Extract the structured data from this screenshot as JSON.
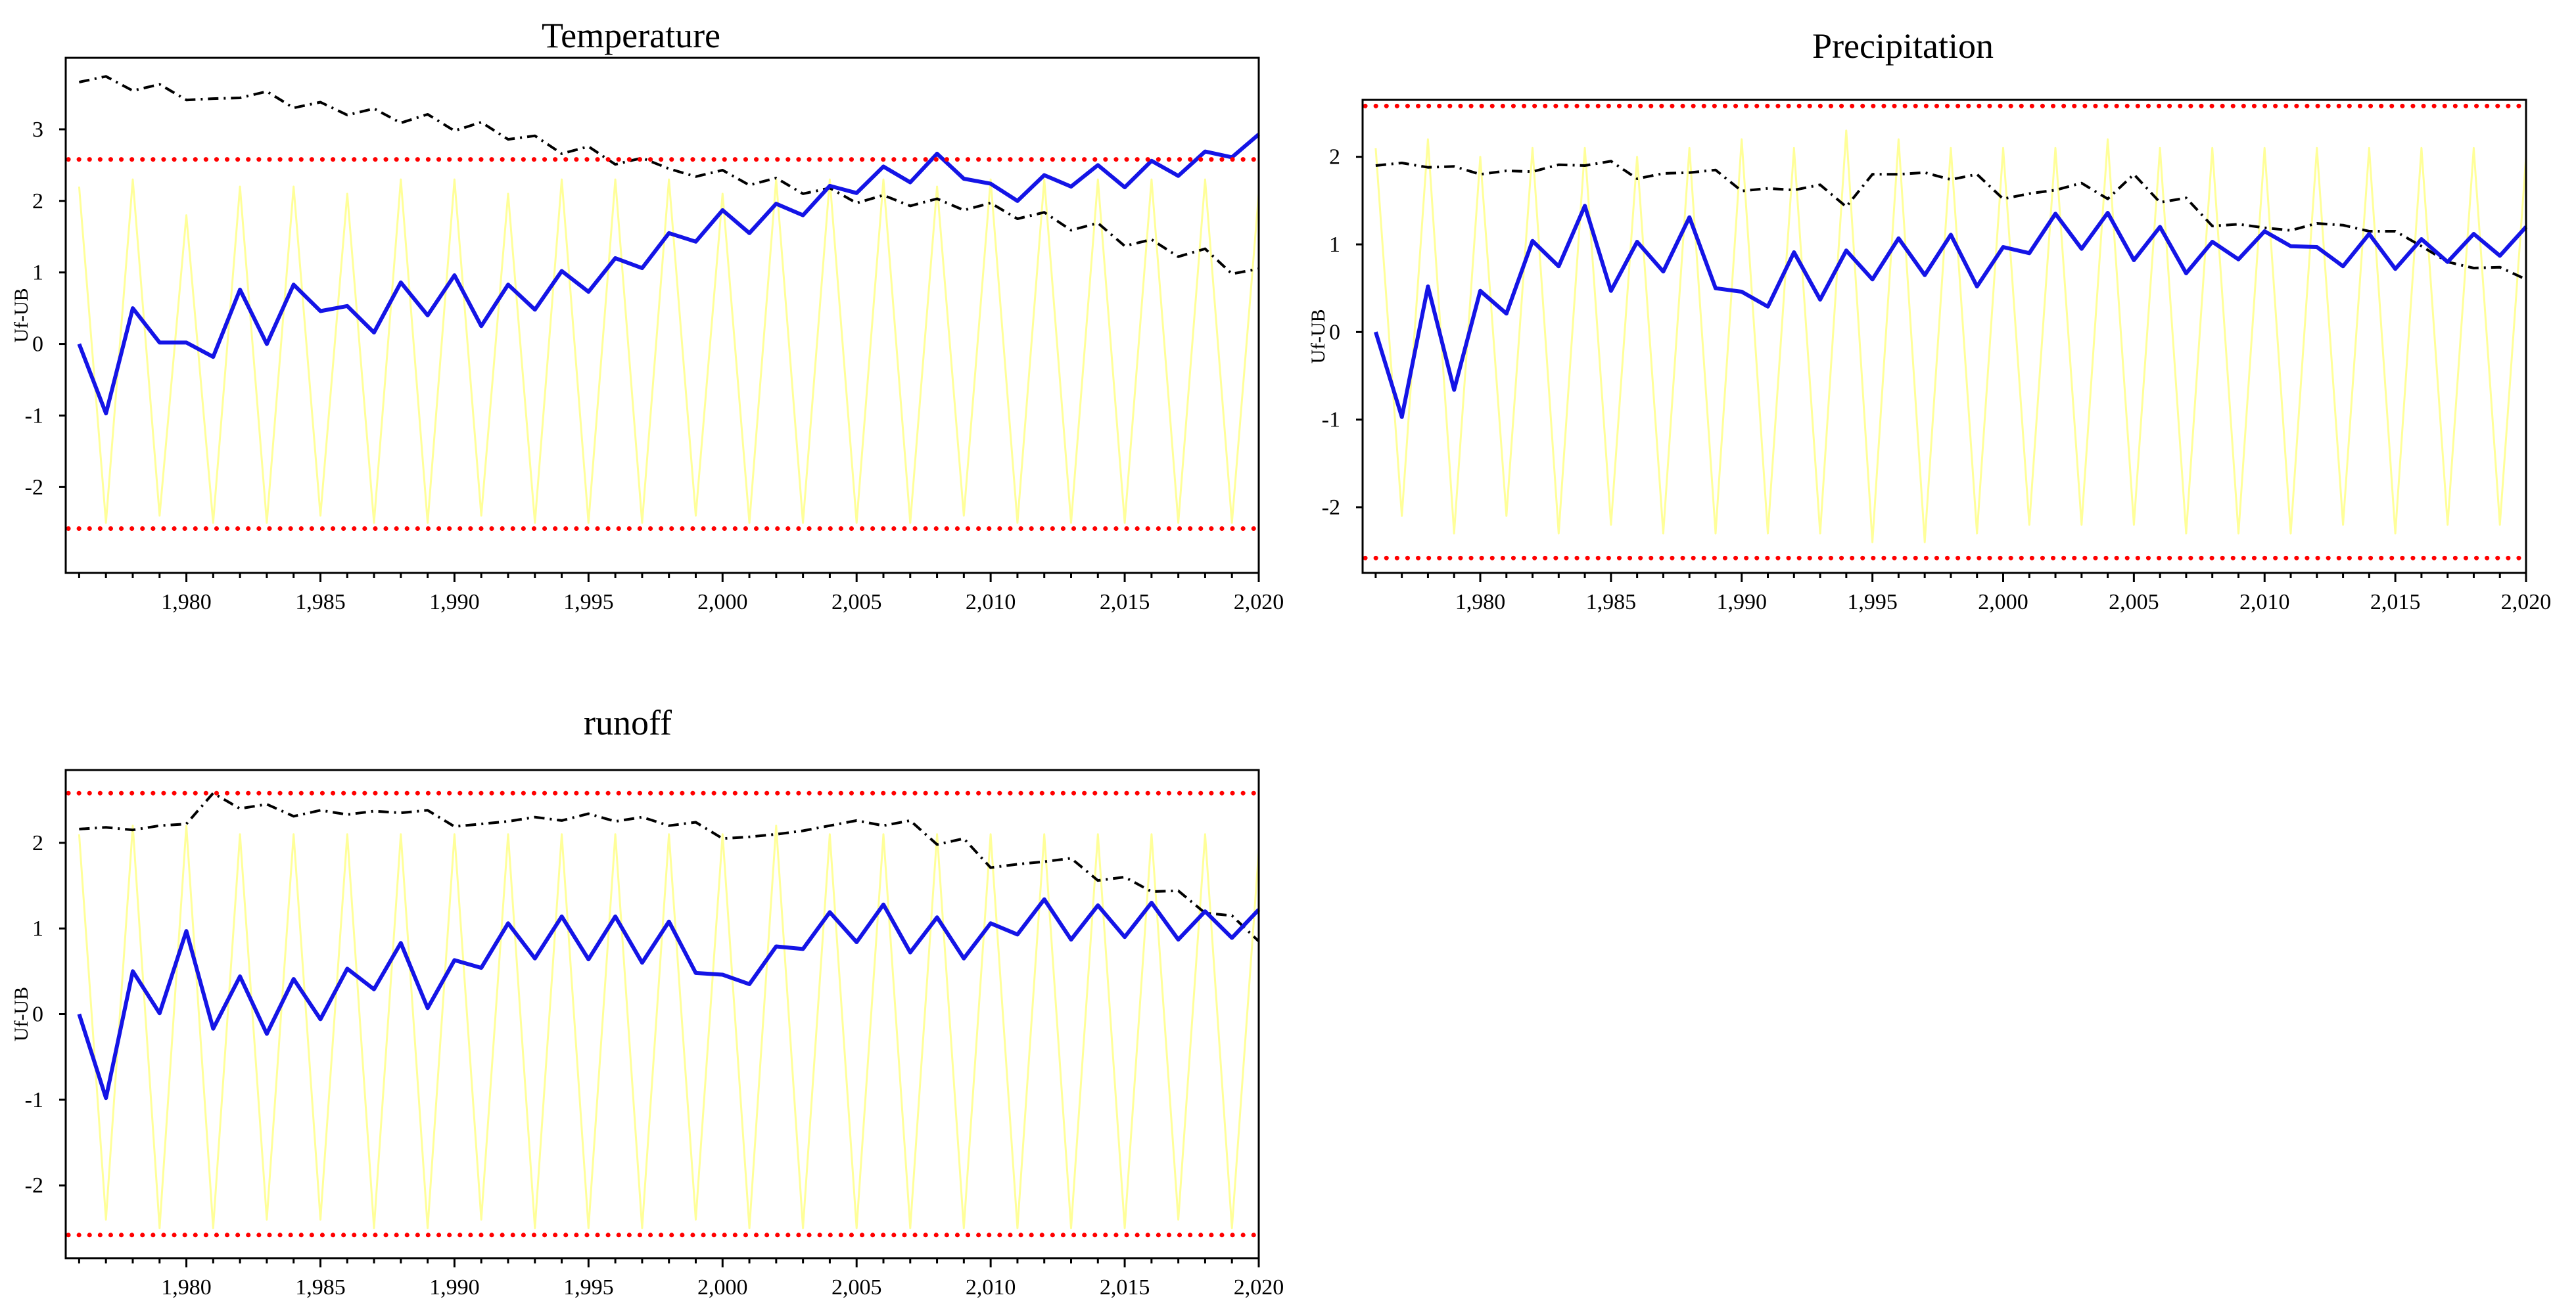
{
  "chart_data": [
    {
      "id": "temperature",
      "type": "line",
      "title": "Temperature",
      "ylabel": "Uf-UB",
      "xlabel": "",
      "xlim": [
        1975.5,
        2020
      ],
      "ylim": [
        -3.2,
        4.0
      ],
      "xticks": [
        1980,
        1985,
        1990,
        1995,
        2000,
        2005,
        2010,
        2015,
        2020
      ],
      "xtick_labels": [
        "1,980",
        "1,985",
        "1,990",
        "1,995",
        "2,000",
        "2,005",
        "2,010",
        "2,015",
        "2,020"
      ],
      "yticks": [
        -2,
        -1,
        0,
        1,
        2,
        3
      ],
      "ytick_labels": [
        "-2",
        "-1",
        "0",
        "1",
        "2",
        "3"
      ],
      "grid": false,
      "legend": "none",
      "x": [
        1976,
        1977,
        1978,
        1979,
        1980,
        1981,
        1982,
        1983,
        1984,
        1985,
        1986,
        1987,
        1988,
        1989,
        1990,
        1991,
        1992,
        1993,
        1994,
        1995,
        1996,
        1997,
        1998,
        1999,
        2000,
        2001,
        2002,
        2003,
        2004,
        2005,
        2006,
        2007,
        2008,
        2009,
        2010,
        2011,
        2012,
        2013,
        2014,
        2015,
        2016,
        2017,
        2018,
        2019,
        2020
      ],
      "series": [
        {
          "role": "uf",
          "color": "#1414e6",
          "style": "solid",
          "values": [
            0,
            -0.97,
            0.5,
            0.02,
            0.02,
            -0.18,
            0.76,
            0.0,
            0.83,
            0.46,
            0.53,
            0.16,
            0.86,
            0.4,
            0.96,
            0.25,
            0.83,
            0.48,
            1.02,
            0.73,
            1.2,
            1.06,
            1.55,
            1.43,
            1.87,
            1.55,
            1.96,
            1.8,
            2.21,
            2.11,
            2.48,
            2.26,
            2.66,
            2.31,
            2.24,
            2.0,
            2.36,
            2.2,
            2.5,
            2.19,
            2.56,
            2.35,
            2.69,
            2.61,
            2.93
          ]
        },
        {
          "role": "ub",
          "color": "#000000",
          "style": "dashdot",
          "values": [
            3.66,
            3.74,
            3.54,
            3.63,
            3.41,
            3.43,
            3.44,
            3.53,
            3.3,
            3.38,
            3.2,
            3.29,
            3.09,
            3.21,
            2.98,
            3.1,
            2.86,
            2.91,
            2.66,
            2.76,
            2.51,
            2.6,
            2.45,
            2.34,
            2.43,
            2.22,
            2.32,
            2.1,
            2.18,
            1.97,
            2.08,
            1.93,
            2.03,
            1.87,
            1.97,
            1.75,
            1.84,
            1.59,
            1.69,
            1.37,
            1.46,
            1.22,
            1.33,
            0.98,
            1.05
          ]
        },
        {
          "role": "uf-sequence",
          "color": "#ffff99",
          "style": "solid",
          "values": [
            2.2,
            -2.5,
            2.3,
            -2.4,
            1.8,
            -2.5,
            2.2,
            -2.5,
            2.2,
            -2.4,
            2.1,
            -2.5,
            2.3,
            -2.5,
            2.3,
            -2.4,
            2.1,
            -2.5,
            2.3,
            -2.5,
            2.3,
            -2.5,
            2.3,
            -2.4,
            2.1,
            -2.5,
            2.3,
            -2.5,
            2.3,
            -2.5,
            2.3,
            -2.5,
            2.2,
            -2.4,
            2.3,
            -2.5,
            2.3,
            -2.5,
            2.3,
            -2.5,
            2.3,
            -2.5,
            2.3,
            -2.5,
            2.1
          ]
        }
      ],
      "bounds": {
        "values": [
          2.58,
          -2.58
        ],
        "color": "#ff0000",
        "style": "dotted"
      }
    },
    {
      "id": "precipitation",
      "type": "line",
      "title": "Precipitation",
      "ylabel": "Uf-UB",
      "xlabel": "",
      "xlim": [
        1975.5,
        2020
      ],
      "ylim": [
        -2.75,
        2.65
      ],
      "xticks": [
        1980,
        1985,
        1990,
        1995,
        2000,
        2005,
        2010,
        2015,
        2020
      ],
      "xtick_labels": [
        "1,980",
        "1,985",
        "1,990",
        "1,995",
        "2,000",
        "2,005",
        "2,010",
        "2,015",
        "2,020"
      ],
      "yticks": [
        -2,
        -1,
        0,
        1,
        2
      ],
      "ytick_labels": [
        "-2",
        "-1",
        "0",
        "1",
        "2"
      ],
      "grid": false,
      "legend": "none",
      "x": [
        1976,
        1977,
        1978,
        1979,
        1980,
        1981,
        1982,
        1983,
        1984,
        1985,
        1986,
        1987,
        1988,
        1989,
        1990,
        1991,
        1992,
        1993,
        1994,
        1995,
        1996,
        1997,
        1998,
        1999,
        2000,
        2001,
        2002,
        2003,
        2004,
        2005,
        2006,
        2007,
        2008,
        2009,
        2010,
        2011,
        2012,
        2013,
        2014,
        2015,
        2016,
        2017,
        2018,
        2019,
        2020
      ],
      "series": [
        {
          "role": "uf",
          "color": "#1414e6",
          "style": "solid",
          "values": [
            0,
            -0.97,
            0.52,
            -0.66,
            0.47,
            0.21,
            1.04,
            0.75,
            1.44,
            0.47,
            1.03,
            0.69,
            1.31,
            0.5,
            0.46,
            0.29,
            0.91,
            0.37,
            0.93,
            0.6,
            1.07,
            0.65,
            1.11,
            0.52,
            0.97,
            0.9,
            1.35,
            0.95,
            1.36,
            0.82,
            1.2,
            0.67,
            1.03,
            0.83,
            1.15,
            0.98,
            0.97,
            0.75,
            1.12,
            0.72,
            1.06,
            0.8,
            1.12,
            0.87,
            1.2
          ]
        },
        {
          "role": "ub",
          "color": "#000000",
          "style": "dashdot",
          "values": [
            1.9,
            1.93,
            1.88,
            1.89,
            1.8,
            1.84,
            1.83,
            1.91,
            1.9,
            1.95,
            1.75,
            1.81,
            1.82,
            1.85,
            1.61,
            1.64,
            1.62,
            1.68,
            1.43,
            1.8,
            1.8,
            1.82,
            1.74,
            1.8,
            1.52,
            1.58,
            1.62,
            1.7,
            1.52,
            1.8,
            1.48,
            1.53,
            1.21,
            1.23,
            1.19,
            1.16,
            1.24,
            1.22,
            1.15,
            1.15,
            0.98,
            0.8,
            0.73,
            0.74,
            0.6
          ]
        },
        {
          "role": "uf-sequence",
          "color": "#ffff99",
          "style": "solid",
          "values": [
            2.1,
            -2.1,
            2.2,
            -2.3,
            2.0,
            -2.1,
            2.1,
            -2.3,
            2.1,
            -2.2,
            2.0,
            -2.3,
            2.1,
            -2.3,
            2.2,
            -2.3,
            2.1,
            -2.3,
            2.3,
            -2.4,
            2.2,
            -2.4,
            2.1,
            -2.3,
            2.1,
            -2.2,
            2.1,
            -2.2,
            2.2,
            -2.2,
            2.1,
            -2.3,
            2.1,
            -2.3,
            2.1,
            -2.3,
            2.1,
            -2.2,
            2.1,
            -2.3,
            2.1,
            -2.2,
            2.1,
            -2.2,
            2.0
          ]
        }
      ],
      "bounds": {
        "values": [
          2.58,
          -2.58
        ],
        "color": "#ff0000",
        "style": "dotted"
      }
    },
    {
      "id": "runoff",
      "type": "line",
      "title": "runoff",
      "ylabel": "Uf-UB",
      "xlabel": "",
      "xlim": [
        1975.5,
        2020
      ],
      "ylim": [
        -2.85,
        2.85
      ],
      "xticks": [
        1980,
        1985,
        1990,
        1995,
        2000,
        2005,
        2010,
        2015,
        2020
      ],
      "xtick_labels": [
        "1,980",
        "1,985",
        "1,990",
        "1,995",
        "2,000",
        "2,005",
        "2,010",
        "2,015",
        "2,020"
      ],
      "yticks": [
        -2,
        -1,
        0,
        1,
        2
      ],
      "ytick_labels": [
        "-2",
        "-1",
        "0",
        "1",
        "2"
      ],
      "grid": false,
      "legend": "none",
      "x": [
        1976,
        1977,
        1978,
        1979,
        1980,
        1981,
        1982,
        1983,
        1984,
        1985,
        1986,
        1987,
        1988,
        1989,
        1990,
        1991,
        1992,
        1993,
        1994,
        1995,
        1996,
        1997,
        1998,
        1999,
        2000,
        2001,
        2002,
        2003,
        2004,
        2005,
        2006,
        2007,
        2008,
        2009,
        2010,
        2011,
        2012,
        2013,
        2014,
        2015,
        2016,
        2017,
        2018,
        2019,
        2020
      ],
      "series": [
        {
          "role": "uf",
          "color": "#1414e6",
          "style": "solid",
          "values": [
            0,
            -0.98,
            0.5,
            0.01,
            0.97,
            -0.17,
            0.44,
            -0.23,
            0.41,
            -0.06,
            0.53,
            0.29,
            0.83,
            0.07,
            0.63,
            0.54,
            1.06,
            0.65,
            1.14,
            0.64,
            1.14,
            0.6,
            1.08,
            0.48,
            0.46,
            0.35,
            0.79,
            0.76,
            1.19,
            0.84,
            1.28,
            0.72,
            1.13,
            0.65,
            1.06,
            0.93,
            1.34,
            0.87,
            1.27,
            0.9,
            1.3,
            0.87,
            1.2,
            0.89,
            1.22
          ]
        },
        {
          "role": "ub",
          "color": "#000000",
          "style": "dashdot",
          "values": [
            2.16,
            2.18,
            2.15,
            2.2,
            2.22,
            2.58,
            2.4,
            2.45,
            2.31,
            2.38,
            2.33,
            2.37,
            2.35,
            2.38,
            2.19,
            2.22,
            2.25,
            2.3,
            2.26,
            2.34,
            2.25,
            2.3,
            2.2,
            2.24,
            2.05,
            2.07,
            2.1,
            2.14,
            2.2,
            2.26,
            2.2,
            2.26,
            1.98,
            2.05,
            1.71,
            1.75,
            1.78,
            1.82,
            1.56,
            1.6,
            1.43,
            1.44,
            1.18,
            1.15,
            0.85
          ]
        },
        {
          "role": "uf-sequence",
          "color": "#ffff99",
          "style": "solid",
          "values": [
            2.1,
            -2.4,
            2.2,
            -2.5,
            2.2,
            -2.5,
            2.1,
            -2.4,
            2.1,
            -2.4,
            2.1,
            -2.5,
            2.1,
            -2.5,
            2.1,
            -2.4,
            2.1,
            -2.5,
            2.1,
            -2.5,
            2.1,
            -2.5,
            2.1,
            -2.4,
            2.1,
            -2.5,
            2.2,
            -2.5,
            2.1,
            -2.5,
            2.1,
            -2.5,
            2.1,
            -2.5,
            2.1,
            -2.5,
            2.1,
            -2.5,
            2.1,
            -2.5,
            2.1,
            -2.4,
            2.1,
            -2.5,
            1.9
          ]
        }
      ],
      "bounds": {
        "values": [
          2.58,
          -2.58
        ],
        "color": "#ff0000",
        "style": "dotted"
      }
    }
  ]
}
